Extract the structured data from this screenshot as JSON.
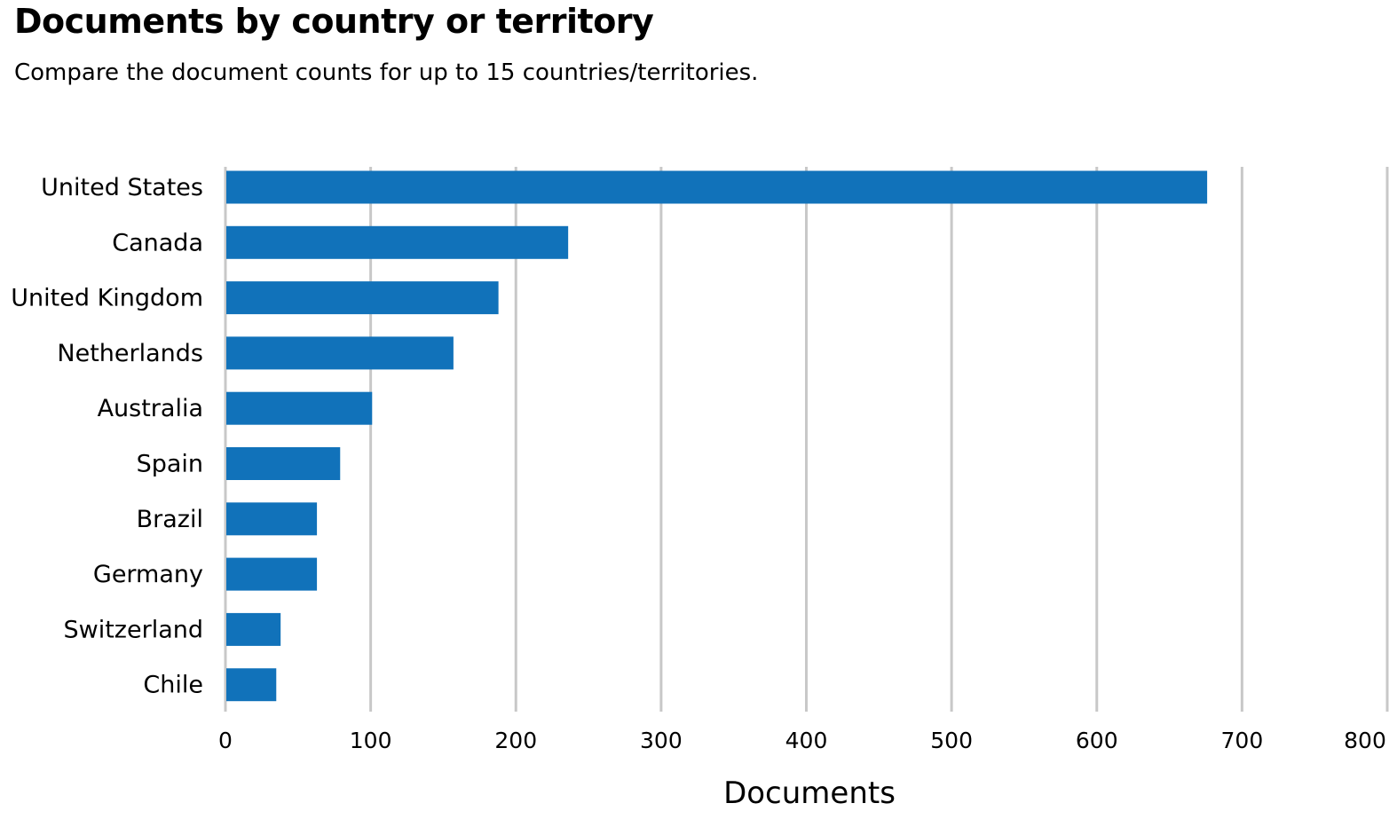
{
  "chart_data": {
    "type": "bar",
    "orientation": "horizontal",
    "title": "Documents by country or territory",
    "subtitle": "Compare the document counts for up to 15 countries/territories.",
    "xlabel": "Documents",
    "ylabel": "",
    "xlim": [
      0,
      800
    ],
    "xticks": [
      "0",
      "100",
      "200",
      "300",
      "400",
      "500",
      "600",
      "700",
      "800"
    ],
    "grid": "vertical",
    "categories": [
      "United States",
      "Canada",
      "United Kingdom",
      "Netherlands",
      "Australia",
      "Spain",
      "Brazil",
      "Germany",
      "Switzerland",
      "Chile"
    ],
    "values": [
      676,
      236,
      188,
      157,
      101,
      79,
      63,
      63,
      38,
      35
    ],
    "colors": {
      "bar": "#1172ba",
      "grid": "#c8c8c8",
      "text": "#000000"
    }
  }
}
